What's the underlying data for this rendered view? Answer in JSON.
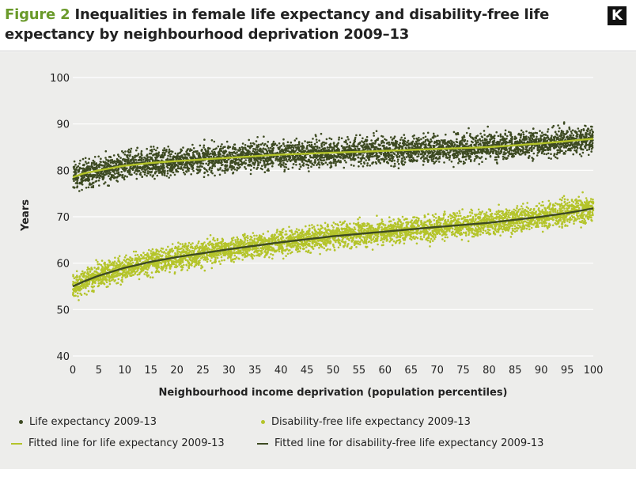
{
  "header": {
    "figure_label": "Figure 2",
    "title_text": "Inequalities in female life expectancy and disability-free life expectancy by neighbourhood deprivation 2009–13",
    "logo": "K"
  },
  "colors": {
    "dark": "#3d4a22",
    "light": "#b4c42a",
    "grid": "#ffffff",
    "background": "#ededeb",
    "accent": "#6a9a2a"
  },
  "chart_data": {
    "type": "scatter",
    "xlabel": "Neighbourhood income deprivation (population percentiles)",
    "ylabel": "Years",
    "xlim": [
      0,
      100
    ],
    "ylim": [
      40,
      100
    ],
    "x_ticks": [
      0,
      5,
      10,
      15,
      20,
      25,
      30,
      35,
      40,
      45,
      50,
      55,
      60,
      65,
      70,
      75,
      80,
      85,
      90,
      95,
      100
    ],
    "y_ticks": [
      40,
      50,
      60,
      70,
      80,
      90,
      100
    ],
    "grid": "horizontal",
    "legend_position": "bottom",
    "series": [
      {
        "name": "Life expectancy 2009-13",
        "kind": "points",
        "color": "dark",
        "x": [
          0,
          5,
          10,
          20,
          30,
          40,
          50,
          60,
          70,
          80,
          90,
          100
        ],
        "y": [
          78.5,
          80.0,
          81.0,
          82.0,
          82.7,
          83.4,
          83.8,
          84.2,
          84.6,
          85.0,
          85.8,
          86.8
        ],
        "spread": 2.5,
        "points_per_percentile": 45
      },
      {
        "name": "Disability-free life expectancy 2009-13",
        "kind": "points",
        "color": "light",
        "x": [
          0,
          5,
          10,
          20,
          30,
          40,
          50,
          60,
          70,
          80,
          90,
          100
        ],
        "y": [
          55.0,
          57.3,
          59.0,
          61.3,
          63.0,
          64.5,
          65.8,
          66.8,
          67.8,
          68.7,
          70.0,
          71.8
        ],
        "spread": 2.3,
        "points_per_percentile": 45
      },
      {
        "name": "Fitted line for life expectancy 2009-13",
        "kind": "line",
        "color": "light",
        "x": [
          0,
          2,
          5,
          10,
          15,
          20,
          30,
          40,
          50,
          60,
          70,
          80,
          90,
          95,
          100
        ],
        "y": [
          78.5,
          79.3,
          80.0,
          81.0,
          81.6,
          82.0,
          82.7,
          83.4,
          83.8,
          84.2,
          84.6,
          85.0,
          85.8,
          86.3,
          86.8
        ]
      },
      {
        "name": "Fitted line for disability-free life expectancy 2009-13",
        "kind": "line",
        "color": "dark",
        "x": [
          0,
          2,
          5,
          10,
          15,
          20,
          30,
          40,
          50,
          60,
          70,
          80,
          90,
          95,
          100
        ],
        "y": [
          55.0,
          56.0,
          57.3,
          59.0,
          60.3,
          61.3,
          63.0,
          64.5,
          65.8,
          66.8,
          67.8,
          68.7,
          70.0,
          70.8,
          71.8
        ]
      }
    ]
  }
}
